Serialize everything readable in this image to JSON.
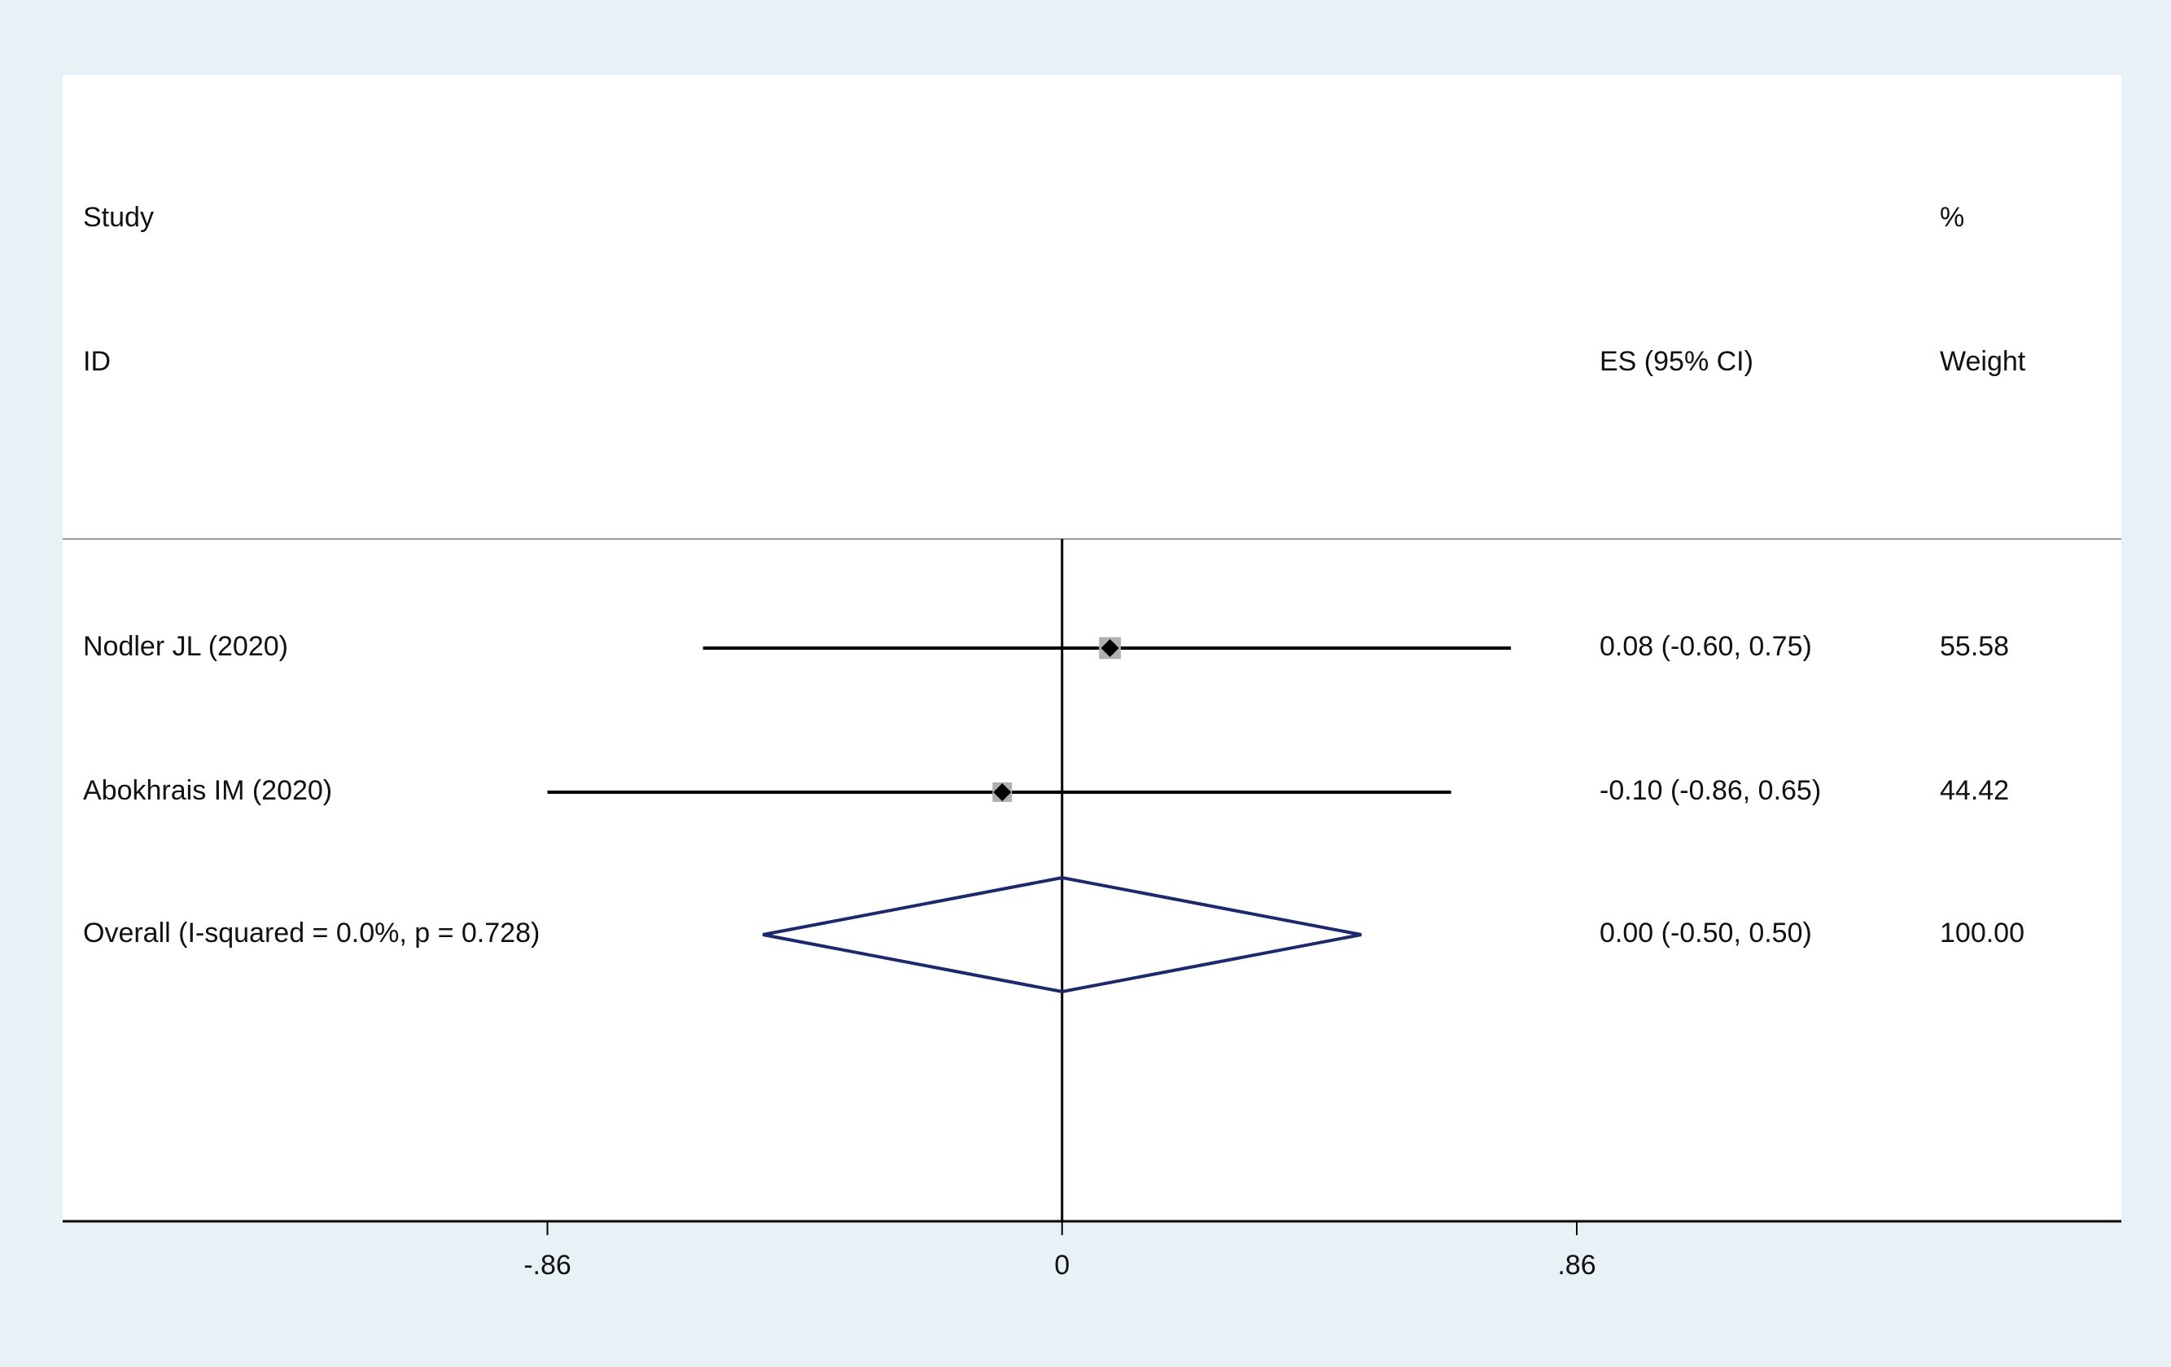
{
  "chart_data": {
    "type": "forest",
    "headers": {
      "study": "Study",
      "id": "ID",
      "es": "ES (95% CI)",
      "pct": "%",
      "weight": "Weight"
    },
    "studies": [
      {
        "name": "Nodler JL (2020)",
        "es": 0.08,
        "lower": -0.6,
        "upper": 0.75,
        "label": "0.08 (-0.60, 0.75)",
        "weight": 55.58
      },
      {
        "name": "Abokhrais IM (2020)",
        "es": -0.1,
        "lower": -0.86,
        "upper": 0.65,
        "label": "-0.10 (-0.86, 0.65)",
        "weight": 44.42
      }
    ],
    "overall": {
      "name": "Overall  (I-squared = 0.0%, p = 0.728)",
      "es": 0.0,
      "lower": -0.5,
      "upper": 0.5,
      "label": "0.00 (-0.50, 0.50)",
      "weight": {
        "value": 100,
        "label": "100.00"
      }
    },
    "xlim": [
      -1.67,
      1.77
    ],
    "xticks": [
      {
        "value": -0.86,
        "label": "-.86"
      },
      0,
      {
        "value": 0.86,
        "label": ".86"
      }
    ],
    "null_line": 0,
    "line_color": "#000000",
    "box_color": "#b0b0b0",
    "diamond_color": "#1a2a6c"
  }
}
